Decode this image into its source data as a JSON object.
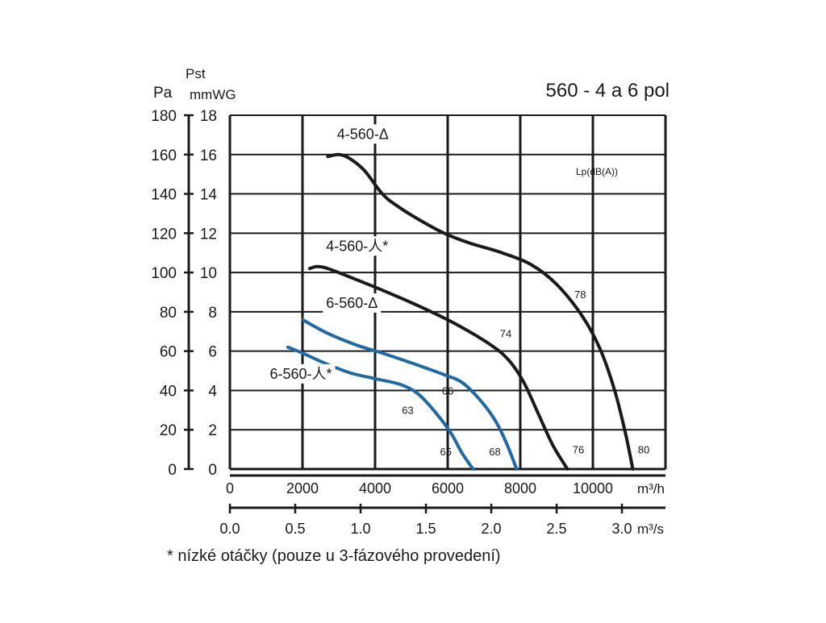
{
  "header": {
    "title": "560 - 4 a 6 pol",
    "footnote": "* nízké otáčky (pouze u 3-fázového provedení)",
    "legend_label": "Lp(dB(A))"
  },
  "colors": {
    "black_curve": "#1a1a1a",
    "blue_curve": "#1f6aa6",
    "grid": "#1a1a1a",
    "background": "#ffffff"
  },
  "chart_data": {
    "type": "line",
    "title": "560 - 4 a 6 pol",
    "y_axes": {
      "pa": {
        "label": "Pa",
        "ticks": [
          "0",
          "20",
          "40",
          "60",
          "80",
          "100",
          "120",
          "140",
          "160",
          "180"
        ],
        "ylim": [
          0,
          180
        ]
      },
      "mmwg": {
        "label_top": "Pst",
        "label": "mmWG",
        "ticks": [
          "0",
          "2",
          "4",
          "6",
          "8",
          "10",
          "12",
          "14",
          "16",
          "18"
        ],
        "ylim": [
          0,
          18
        ]
      }
    },
    "x_axes": {
      "m3h": {
        "unit": "m³/h",
        "ticks": [
          "0",
          "2000",
          "4000",
          "6000",
          "8000",
          "10000"
        ],
        "xlim": [
          0,
          12000
        ]
      },
      "m3s": {
        "unit": "m³/s",
        "ticks": [
          "0.0",
          "0.5",
          "1.0",
          "1.5",
          "2.0",
          "2.5",
          "3.0"
        ],
        "values": [
          0,
          0.5,
          1.0,
          1.5,
          2.0,
          2.5,
          3.0
        ],
        "xlim": [
          0,
          3.333
        ]
      }
    },
    "grid": true,
    "series": [
      {
        "name": "4-560-Δ",
        "color": "black",
        "points": [
          [
            2700,
            159
          ],
          [
            3000,
            160
          ],
          [
            3300,
            158
          ],
          [
            3700,
            152
          ],
          [
            4200,
            140
          ],
          [
            4600,
            134
          ],
          [
            5200,
            127
          ],
          [
            5900,
            120
          ],
          [
            6600,
            115
          ],
          [
            7500,
            110
          ],
          [
            8300,
            104
          ],
          [
            9000,
            94
          ],
          [
            9700,
            78
          ],
          [
            10200,
            61
          ],
          [
            10600,
            40
          ],
          [
            10900,
            18
          ],
          [
            11100,
            0
          ]
        ],
        "noise_labels": [
          {
            "text": "78",
            "at": [
              9650,
              87
            ]
          },
          {
            "text": "80",
            "at": [
              11400,
              8
            ]
          }
        ]
      },
      {
        "name": "4-560-人*",
        "color": "black",
        "points": [
          [
            2200,
            102
          ],
          [
            2400,
            103
          ],
          [
            2700,
            102
          ],
          [
            3400,
            97
          ],
          [
            4200,
            91
          ],
          [
            5200,
            83
          ],
          [
            6200,
            74
          ],
          [
            7200,
            63
          ],
          [
            7700,
            55
          ],
          [
            8100,
            44
          ],
          [
            8500,
            28
          ],
          [
            8900,
            12
          ],
          [
            9300,
            0
          ]
        ],
        "noise_labels": [
          {
            "text": "74",
            "at": [
              7600,
              67
            ]
          },
          {
            "text": "76",
            "at": [
              9600,
              8
            ]
          }
        ]
      },
      {
        "name": "6-560-Δ",
        "color": "blue",
        "points": [
          [
            2000,
            76
          ],
          [
            2700,
            69
          ],
          [
            3500,
            63
          ],
          [
            4200,
            59
          ],
          [
            5000,
            54
          ],
          [
            5900,
            48
          ],
          [
            6400,
            44
          ],
          [
            6900,
            35
          ],
          [
            7300,
            25
          ],
          [
            7600,
            14
          ],
          [
            7900,
            0
          ]
        ],
        "noise_labels": [
          {
            "text": "66",
            "at": [
              6000,
              38
            ]
          },
          {
            "text": "68",
            "at": [
              7300,
              7
            ]
          }
        ]
      },
      {
        "name": "6-560-人*",
        "color": "blue",
        "points": [
          [
            1600,
            62
          ],
          [
            2000,
            59
          ],
          [
            2600,
            54
          ],
          [
            3300,
            49
          ],
          [
            4000,
            46
          ],
          [
            4700,
            43
          ],
          [
            5200,
            38
          ],
          [
            5700,
            28
          ],
          [
            6100,
            18
          ],
          [
            6400,
            8
          ],
          [
            6700,
            0
          ]
        ],
        "noise_labels": [
          {
            "text": "63",
            "at": [
              4900,
              28
            ]
          },
          {
            "text": "65",
            "at": [
              5950,
              7
            ]
          }
        ]
      }
    ],
    "series_labels": [
      {
        "text": "4-560-Δ",
        "at": [
          2950,
          168
        ]
      },
      {
        "text": "4-560-人*",
        "at": [
          2650,
          111
        ]
      },
      {
        "text": "6-560-Δ",
        "at": [
          2650,
          82
        ]
      },
      {
        "text": "6-560-人*",
        "at": [
          1100,
          46
        ]
      }
    ]
  }
}
